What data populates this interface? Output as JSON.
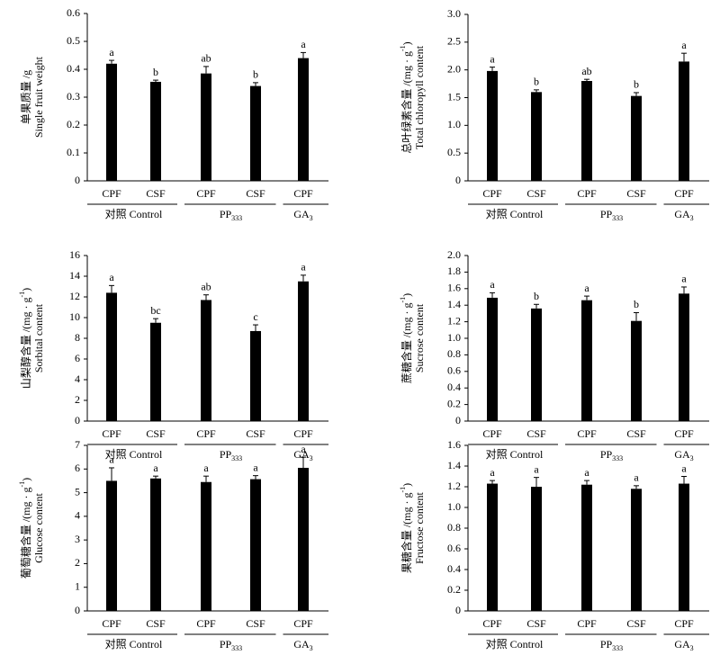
{
  "chart_data": [
    {
      "type": "bar",
      "ylabel_cn": [
        {
          "text": "单果质量 /g"
        }
      ],
      "ylabel_en": [
        {
          "text": "Single fruit weight"
        }
      ],
      "groups": [
        {
          "label": [
            {
              "text": "对照 Control"
            }
          ],
          "categories": [
            "CPF",
            "CSF"
          ]
        },
        {
          "label": [
            {
              "text": "PP"
            },
            {
              "text": "333",
              "sub": true
            }
          ],
          "categories": [
            "CPF",
            "CSF"
          ]
        },
        {
          "label": [
            {
              "text": "GA"
            },
            {
              "text": "3",
              "sub": true
            }
          ],
          "categories": [
            "CPF"
          ]
        }
      ],
      "values": [
        0.42,
        0.355,
        0.385,
        0.34,
        0.44
      ],
      "errors": [
        0.012,
        0.006,
        0.025,
        0.012,
        0.02
      ],
      "annotations": [
        "a",
        "b",
        "ab",
        "b",
        "a"
      ],
      "color": "#000000",
      "ylim": [
        0,
        0.6
      ],
      "yticks": [
        0,
        0.1,
        0.2,
        0.3,
        0.4,
        0.5,
        0.6
      ]
    },
    {
      "type": "bar",
      "ylabel_cn": [
        {
          "text": "总叶绿素含量 /(mg · g"
        },
        {
          "text": "-1",
          "sup": true
        },
        {
          "text": ")"
        }
      ],
      "ylabel_en": [
        {
          "text": "Total chloropyll content"
        }
      ],
      "groups": [
        {
          "label": [
            {
              "text": "对照 Control"
            }
          ],
          "categories": [
            "CPF",
            "CSF"
          ]
        },
        {
          "label": [
            {
              "text": "PP"
            },
            {
              "text": "333",
              "sub": true
            }
          ],
          "categories": [
            "CPF",
            "CSF"
          ]
        },
        {
          "label": [
            {
              "text": "GA"
            },
            {
              "text": "3",
              "sub": true
            }
          ],
          "categories": [
            "CPF"
          ]
        }
      ],
      "values": [
        1.98,
        1.6,
        1.8,
        1.53,
        2.15
      ],
      "errors": [
        0.07,
        0.04,
        0.03,
        0.06,
        0.15
      ],
      "annotations": [
        "a",
        "b",
        "ab",
        "b",
        "a"
      ],
      "color": "#000000",
      "ylim": [
        0,
        3
      ],
      "yticks": [
        0,
        0.5,
        {
          "value": 1,
          "label": "1.0"
        },
        1.5,
        {
          "value": 2,
          "label": "2.0"
        },
        2.5,
        {
          "value": 3,
          "label": "3.0"
        }
      ]
    },
    {
      "type": "bar",
      "ylabel_cn": [
        {
          "text": "山梨醇含量 /(mg · g"
        },
        {
          "text": "-1",
          "sup": true
        },
        {
          "text": ")"
        }
      ],
      "ylabel_en": [
        {
          "text": "Sorbital content"
        }
      ],
      "groups": [
        {
          "label": [
            {
              "text": "对照 Control"
            }
          ],
          "categories": [
            "CPF",
            "CSF"
          ]
        },
        {
          "label": [
            {
              "text": "PP"
            },
            {
              "text": "333",
              "sub": true
            }
          ],
          "categories": [
            "CPF",
            "CSF"
          ]
        },
        {
          "label": [
            {
              "text": "GA"
            },
            {
              "text": "3",
              "sub": true
            }
          ],
          "categories": [
            "CPF"
          ]
        }
      ],
      "values": [
        12.4,
        9.5,
        11.7,
        8.7,
        13.5
      ],
      "errors": [
        0.7,
        0.4,
        0.5,
        0.6,
        0.6
      ],
      "annotations": [
        "a",
        "bc",
        "ab",
        "c",
        "a"
      ],
      "color": "#000000",
      "ylim": [
        0,
        16
      ],
      "yticks": [
        0,
        2,
        4,
        6,
        8,
        10,
        12,
        14,
        16
      ]
    },
    {
      "type": "bar",
      "ylabel_cn": [
        {
          "text": "蔗糖含量 /(mg · g"
        },
        {
          "text": "-1",
          "sup": true
        },
        {
          "text": ")"
        }
      ],
      "ylabel_en": [
        {
          "text": "Sucrose content"
        }
      ],
      "groups": [
        {
          "label": [
            {
              "text": "对照 Control"
            }
          ],
          "categories": [
            "CPF",
            "CSF"
          ]
        },
        {
          "label": [
            {
              "text": "PP"
            },
            {
              "text": "333",
              "sub": true
            }
          ],
          "categories": [
            "CPF",
            "CSF"
          ]
        },
        {
          "label": [
            {
              "text": "GA"
            },
            {
              "text": "3",
              "sub": true
            }
          ],
          "categories": [
            "CPF"
          ]
        }
      ],
      "values": [
        1.49,
        1.36,
        1.46,
        1.21,
        1.54
      ],
      "errors": [
        0.06,
        0.05,
        0.05,
        0.1,
        0.08
      ],
      "annotations": [
        "a",
        "b",
        "a",
        "b",
        "a"
      ],
      "color": "#000000",
      "ylim": [
        0,
        2
      ],
      "yticks": [
        0,
        0.2,
        0.4,
        0.6,
        0.8,
        {
          "value": 1,
          "label": "1.0"
        },
        1.2,
        1.4,
        1.6,
        1.8,
        {
          "value": 2,
          "label": "2.0"
        }
      ]
    },
    {
      "type": "bar",
      "ylabel_cn": [
        {
          "text": "葡萄糖含量 /(mg · g"
        },
        {
          "text": "-1",
          "sup": true
        },
        {
          "text": ")"
        }
      ],
      "ylabel_en": [
        {
          "text": "Glucose content"
        }
      ],
      "groups": [
        {
          "label": [
            {
              "text": "对照 Control"
            }
          ],
          "categories": [
            "CPF",
            "CSF"
          ]
        },
        {
          "label": [
            {
              "text": "PP"
            },
            {
              "text": "333",
              "sub": true
            }
          ],
          "categories": [
            "CPF",
            "CSF"
          ]
        },
        {
          "label": [
            {
              "text": "GA"
            },
            {
              "text": "3",
              "sub": true
            }
          ],
          "categories": [
            "CPF"
          ]
        }
      ],
      "values": [
        5.5,
        5.6,
        5.45,
        5.57,
        6.05
      ],
      "errors": [
        0.55,
        0.1,
        0.25,
        0.15,
        0.45
      ],
      "annotations": [
        "a",
        "a",
        "a",
        "a",
        "a"
      ],
      "color": "#000000",
      "ylim": [
        0,
        7
      ],
      "yticks": [
        0,
        1,
        2,
        3,
        4,
        5,
        6,
        7
      ]
    },
    {
      "type": "bar",
      "ylabel_cn": [
        {
          "text": "果糖含量 /(mg · g"
        },
        {
          "text": "-1",
          "sup": true
        },
        {
          "text": ")"
        }
      ],
      "ylabel_en": [
        {
          "text": "Fructose content"
        }
      ],
      "groups": [
        {
          "label": [
            {
              "text": "对照 Control"
            }
          ],
          "categories": [
            "CPF",
            "CSF"
          ]
        },
        {
          "label": [
            {
              "text": "PP"
            },
            {
              "text": "333",
              "sub": true
            }
          ],
          "categories": [
            "CPF",
            "CSF"
          ]
        },
        {
          "label": [
            {
              "text": "GA"
            },
            {
              "text": "3",
              "sub": true
            }
          ],
          "categories": [
            "CPF"
          ]
        }
      ],
      "values": [
        1.23,
        1.2,
        1.22,
        1.18,
        1.23
      ],
      "errors": [
        0.03,
        0.09,
        0.04,
        0.03,
        0.07
      ],
      "annotations": [
        "a",
        "a",
        "a",
        "a",
        "a"
      ],
      "color": "#000000",
      "ylim": [
        0,
        1.6
      ],
      "yticks": [
        0,
        0.2,
        0.4,
        0.6,
        0.8,
        {
          "value": 1,
          "label": "1.0"
        },
        1.2,
        1.4,
        1.6
      ]
    }
  ]
}
